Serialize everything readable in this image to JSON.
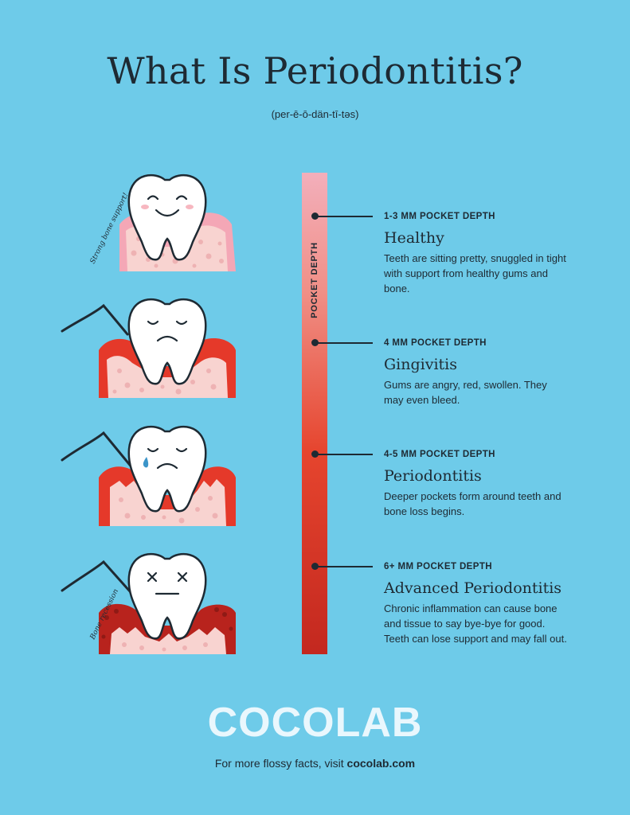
{
  "title": "What Is Periodontitis?",
  "pronunciation": "(per-ē-ō-dän-tī-təs)",
  "bar_label": "POCKET DEPTH",
  "annotations": {
    "strong_bone": "Strong bone support!",
    "bone_recession": "Bone recession"
  },
  "stages": [
    {
      "depth": "1-3 MM POCKET DEPTH",
      "name": "Healthy",
      "description": "Teeth are sitting pretty, snuggled in tight with support from healthy gums and bone."
    },
    {
      "depth": "4 MM POCKET DEPTH",
      "name": "Gingivitis",
      "description": "Gums are angry, red, swollen. They may even bleed."
    },
    {
      "depth": "4-5 MM POCKET DEPTH",
      "name": "Periodontitis",
      "description": "Deeper pockets form around teeth and bone loss begins."
    },
    {
      "depth": "6+ MM POCKET DEPTH",
      "name": "Advanced Periodontitis",
      "description": "Chronic inflammation can cause bone and tissue to say bye-bye for good. Teeth can lose support and may fall out."
    }
  ],
  "brand": "COCOLAB",
  "footer": {
    "text": "For more flossy facts, visit ",
    "link": "cocolab.com"
  },
  "colors": {
    "background": "#6ecbe9",
    "healthy_gum": "#f4a7b6",
    "inflamed_gum": "#e5392a",
    "advanced_gum": "#b8231d",
    "bone": "#f8d3d0",
    "text": "#1e2a33"
  }
}
